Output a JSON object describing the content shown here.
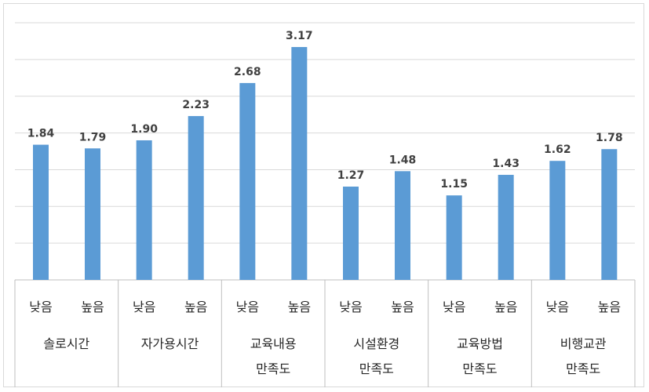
{
  "chart_data": {
    "type": "bar",
    "title": "",
    "xlabel": "",
    "ylabel": "",
    "ylim": [
      0,
      3.5
    ],
    "grid": true,
    "legend": "none",
    "bar_color": "#5b9bd5",
    "groups": [
      {
        "lines": [
          "솔로시간"
        ],
        "bars": [
          {
            "label": "낮음",
            "value": 1.84,
            "value_label": "1.84"
          },
          {
            "label": "높음",
            "value": 1.79,
            "value_label": "1.79"
          }
        ]
      },
      {
        "lines": [
          "자가용시간"
        ],
        "bars": [
          {
            "label": "낮음",
            "value": 1.9,
            "value_label": "1.90"
          },
          {
            "label": "높음",
            "value": 2.23,
            "value_label": "2.23"
          }
        ]
      },
      {
        "lines": [
          "교육내용",
          "만족도"
        ],
        "bars": [
          {
            "label": "낮음",
            "value": 2.68,
            "value_label": "2.68"
          },
          {
            "label": "높음",
            "value": 3.17,
            "value_label": "3.17"
          }
        ]
      },
      {
        "lines": [
          "시설환경",
          "만족도"
        ],
        "bars": [
          {
            "label": "낮음",
            "value": 1.27,
            "value_label": "1.27"
          },
          {
            "label": "높음",
            "value": 1.48,
            "value_label": "1.48"
          }
        ]
      },
      {
        "lines": [
          "교육방법",
          "만족도"
        ],
        "bars": [
          {
            "label": "낮음",
            "value": 1.15,
            "value_label": "1.15"
          },
          {
            "label": "높음",
            "value": 1.43,
            "value_label": "1.43"
          }
        ]
      },
      {
        "lines": [
          "비행교관",
          "만족도"
        ],
        "bars": [
          {
            "label": "낮음",
            "value": 1.62,
            "value_label": "1.62"
          },
          {
            "label": "높음",
            "value": 1.78,
            "value_label": "1.78"
          }
        ]
      }
    ]
  }
}
